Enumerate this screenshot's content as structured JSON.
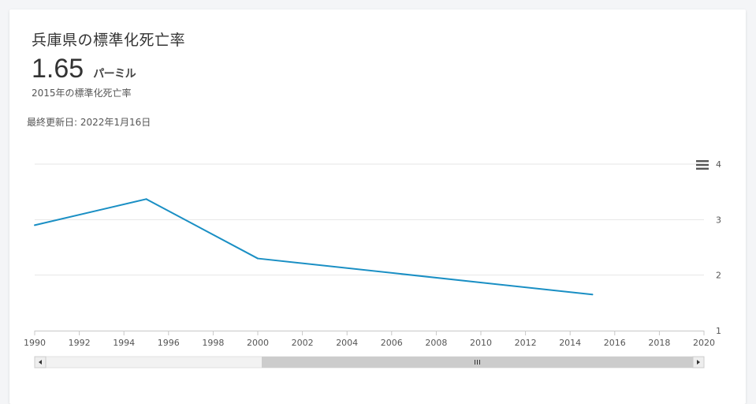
{
  "header": {
    "title": "兵庫県の標準化死亡率",
    "value": "1.65",
    "unit": "パーミル",
    "subtitle": "2015年の標準化死亡率",
    "updated": "最終更新日:  2022年1月16日"
  },
  "colors": {
    "line": "#1a8fc4",
    "grid": "#e6e6e6",
    "scroll_track": "#f2f2f2",
    "scroll_thumb": "#cccccc"
  },
  "icons": {
    "menu": "hamburger-menu-icon",
    "scroll_left": "arrow-left-icon",
    "scroll_right": "arrow-right-icon",
    "scroll_grip": "grip-icon"
  },
  "chart_data": {
    "type": "line",
    "title": "",
    "xlabel": "",
    "ylabel": "",
    "xlim": [
      1990,
      2020
    ],
    "ylim": [
      1,
      4
    ],
    "x_ticks": [
      "1990",
      "1992",
      "1994",
      "1996",
      "1998",
      "2000",
      "2002",
      "2004",
      "2006",
      "2008",
      "2010",
      "2012",
      "2014",
      "2016",
      "2018",
      "2020"
    ],
    "y_ticks": [
      "1",
      "2",
      "3",
      "4"
    ],
    "grid": true,
    "legend": "none",
    "series": [
      {
        "x": [
          1990,
          1995,
          2000,
          2015
        ],
        "y": [
          2.9,
          3.37,
          2.3,
          1.65
        ]
      }
    ],
    "navigator_scrollbar": true
  }
}
